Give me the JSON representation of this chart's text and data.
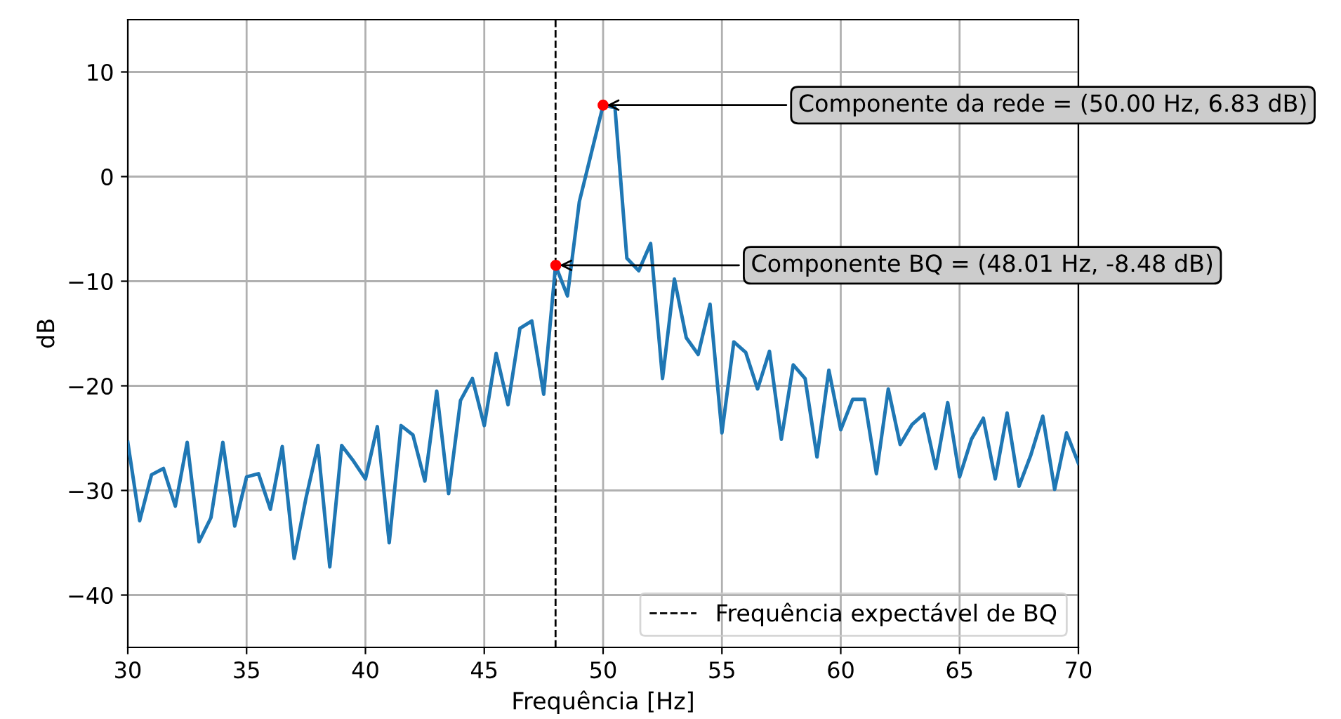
{
  "chart_data": {
    "type": "line",
    "xlabel": "Frequência [Hz]",
    "ylabel": "dB",
    "x": [
      30,
      30.5,
      31,
      31.5,
      32,
      32.5,
      33,
      33.5,
      34,
      34.5,
      35,
      35.5,
      36,
      36.5,
      37,
      37.5,
      38,
      38.5,
      39,
      39.5,
      40,
      40.5,
      41,
      41.5,
      42,
      42.5,
      43,
      43.5,
      44,
      44.5,
      45,
      45.5,
      46,
      46.5,
      47,
      47.5,
      48,
      48.5,
      49,
      49.5,
      50,
      50.5,
      51,
      51.5,
      52,
      52.5,
      53,
      53.5,
      54,
      54.5,
      55,
      55.5,
      56,
      56.5,
      57,
      57.5,
      58,
      58.5,
      59,
      59.5,
      60,
      60.5,
      61,
      61.5,
      62,
      62.5,
      63,
      63.5,
      64,
      64.5,
      65,
      65.5,
      66,
      66.5,
      67,
      67.5,
      68,
      68.5,
      69,
      69.5,
      70
    ],
    "series": [
      {
        "color": "#1f77b4",
        "values": [
          -25.4,
          -32.9,
          -28.5,
          -27.9,
          -31.5,
          -25.4,
          -34.9,
          -32.6,
          -25.4,
          -33.4,
          -28.7,
          -28.4,
          -31.8,
          -25.8,
          -36.5,
          -30.7,
          -25.7,
          -37.3,
          -25.7,
          -27.2,
          -28.9,
          -23.9,
          -35.0,
          -23.8,
          -24.7,
          -29.1,
          -20.5,
          -30.3,
          -21.4,
          -19.3,
          -23.8,
          -16.9,
          -21.8,
          -14.5,
          -13.8,
          -20.8,
          -8.5,
          -11.4,
          -2.4,
          2.2,
          6.8,
          6.6,
          -7.8,
          -9.0,
          -6.4,
          -19.3,
          -9.8,
          -15.4,
          -17.0,
          -12.2,
          -24.5,
          -15.8,
          -16.8,
          -20.3,
          -16.7,
          -25.1,
          -18.0,
          -19.3,
          -26.8,
          -18.5,
          -24.2,
          -21.3,
          -21.3,
          -28.4,
          -20.3,
          -25.6,
          -23.7,
          -22.7,
          -27.9,
          -21.6,
          -28.7,
          -25.1,
          -23.1,
          -28.9,
          -22.6,
          -29.6,
          -26.6,
          -22.9,
          -29.9,
          -24.5,
          -27.4
        ]
      },
      {
        "type": "scatter",
        "marker": "circle",
        "color": "#ff0000",
        "x": [
          48.01,
          50.0
        ],
        "values": [
          -8.48,
          6.83
        ]
      }
    ],
    "annotations": [
      {
        "text": "Componente da rede = (50.00 Hz, 6.83 dB)",
        "x": 50.0,
        "y": 6.83
      },
      {
        "text": "Componente BQ = (48.01 Hz, -8.48 dB)",
        "x": 48.01,
        "y": -8.48
      }
    ],
    "ref_lines": [
      {
        "axis": "x",
        "value": 48.0,
        "label": "Frequência expectável de BQ",
        "color": "#000000",
        "line_style": "dashed"
      }
    ],
    "xlim": [
      30,
      70
    ],
    "ylim": [
      -45,
      15
    ],
    "xticks": [
      30,
      35,
      40,
      45,
      50,
      55,
      60,
      65,
      70
    ],
    "yticks": [
      {
        "value": -40,
        "label": "−40"
      },
      {
        "value": -30,
        "label": "−30"
      },
      {
        "value": -20,
        "label": "−20"
      },
      {
        "value": -10,
        "label": "−10"
      },
      0,
      10
    ],
    "grid": true,
    "legend": "bottom right",
    "marker": "none",
    "line_style": "solid"
  }
}
